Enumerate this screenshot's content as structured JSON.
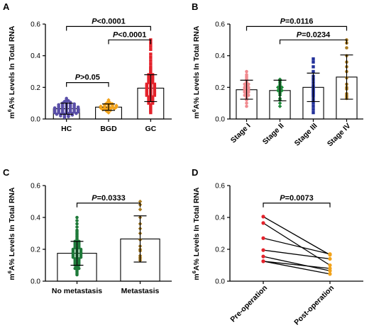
{
  "chart_data": [
    {
      "type": "scatter",
      "panel": "A",
      "ylabel_pre": "m",
      "ylabel_sup": "6",
      "ylabel_post": "A% Levels In Total RNA",
      "ylim": [
        0,
        0.6
      ],
      "yticks": [
        "0.0",
        "0.2",
        "0.4",
        "0.6"
      ],
      "categories": [
        "HC",
        "BGD",
        "GC"
      ],
      "colors": [
        "#5a4fa8",
        "#f2a31b",
        "#e4222b"
      ],
      "series": [
        {
          "category": "HC",
          "mean": 0.065,
          "sd": 0.035,
          "values": [
            0.01,
            0.015,
            0.02,
            0.02,
            0.025,
            0.025,
            0.03,
            0.03,
            0.03,
            0.035,
            0.035,
            0.035,
            0.04,
            0.04,
            0.04,
            0.04,
            0.045,
            0.045,
            0.045,
            0.05,
            0.05,
            0.05,
            0.05,
            0.055,
            0.055,
            0.055,
            0.06,
            0.06,
            0.06,
            0.06,
            0.065,
            0.065,
            0.065,
            0.07,
            0.07,
            0.07,
            0.07,
            0.075,
            0.075,
            0.075,
            0.08,
            0.08,
            0.08,
            0.085,
            0.085,
            0.09,
            0.09,
            0.09,
            0.095,
            0.095,
            0.1,
            0.1,
            0.105,
            0.11,
            0.115,
            0.12,
            0.13
          ]
        },
        {
          "category": "BGD",
          "mean": 0.075,
          "sd": 0.02,
          "values": [
            0.04,
            0.05,
            0.055,
            0.06,
            0.06,
            0.065,
            0.065,
            0.07,
            0.07,
            0.07,
            0.075,
            0.075,
            0.08,
            0.08,
            0.08,
            0.085,
            0.085,
            0.09,
            0.09,
            0.095,
            0.1,
            0.1,
            0.11,
            0.12
          ]
        },
        {
          "category": "GC",
          "mean": 0.195,
          "sd": 0.085,
          "values": [
            0.04,
            0.05,
            0.06,
            0.07,
            0.08,
            0.09,
            0.1,
            0.1,
            0.11,
            0.11,
            0.12,
            0.12,
            0.13,
            0.13,
            0.14,
            0.14,
            0.15,
            0.15,
            0.15,
            0.16,
            0.16,
            0.16,
            0.17,
            0.17,
            0.17,
            0.18,
            0.18,
            0.18,
            0.19,
            0.19,
            0.19,
            0.2,
            0.2,
            0.2,
            0.21,
            0.21,
            0.21,
            0.22,
            0.22,
            0.22,
            0.23,
            0.23,
            0.24,
            0.24,
            0.25,
            0.25,
            0.26,
            0.26,
            0.27,
            0.27,
            0.28,
            0.28,
            0.29,
            0.3,
            0.31,
            0.32,
            0.33,
            0.35,
            0.37,
            0.39,
            0.41,
            0.44,
            0.46,
            0.48,
            0.5
          ]
        }
      ],
      "comparisons": [
        {
          "from": 0,
          "to": 2,
          "label": "P<0.0001",
          "y": 0.585
        },
        {
          "from": 1,
          "to": 2,
          "label": "P<0.0001",
          "y": 0.5
        },
        {
          "from": 0,
          "to": 1,
          "label": "P>0.05",
          "y": 0.23
        }
      ]
    },
    {
      "type": "scatter",
      "panel": "B",
      "ylabel_pre": "m",
      "ylabel_sup": "6",
      "ylabel_post": "A% Levels In Total RNA",
      "ylim": [
        0,
        0.6
      ],
      "yticks": [
        "0.0",
        "0.2",
        "0.4",
        "0.6"
      ],
      "categories": [
        "Stage I",
        "Stage II",
        "Stage III",
        "Stage IV"
      ],
      "colors": [
        "#f08a8f",
        "#1f8a3a",
        "#23319a",
        "#a97a1f"
      ],
      "series": [
        {
          "category": "Stage I",
          "mean": 0.185,
          "sd": 0.06,
          "values": [
            0.08,
            0.1,
            0.12,
            0.13,
            0.14,
            0.15,
            0.15,
            0.16,
            0.17,
            0.17,
            0.18,
            0.18,
            0.19,
            0.19,
            0.2,
            0.2,
            0.21,
            0.22,
            0.22,
            0.23,
            0.24,
            0.25,
            0.26,
            0.27,
            0.28,
            0.3
          ]
        },
        {
          "category": "Stage II",
          "mean": 0.18,
          "sd": 0.065,
          "values": [
            0.08,
            0.1,
            0.12,
            0.13,
            0.15,
            0.16,
            0.17,
            0.18,
            0.18,
            0.19,
            0.2,
            0.2,
            0.21,
            0.22,
            0.23,
            0.24,
            0.25
          ]
        },
        {
          "category": "Stage III",
          "mean": 0.2,
          "sd": 0.09,
          "values": [
            0.04,
            0.06,
            0.08,
            0.1,
            0.12,
            0.14,
            0.15,
            0.16,
            0.17,
            0.18,
            0.19,
            0.2,
            0.21,
            0.23,
            0.25,
            0.27,
            0.3,
            0.33,
            0.36,
            0.38
          ]
        },
        {
          "category": "Stage IV",
          "mean": 0.265,
          "sd": 0.14,
          "values": [
            0.13,
            0.14,
            0.15,
            0.16,
            0.19,
            0.2,
            0.22,
            0.26,
            0.3,
            0.33,
            0.36,
            0.4,
            0.45,
            0.48,
            0.5
          ]
        }
      ],
      "comparisons": [
        {
          "from": 0,
          "to": 3,
          "label": "P=0.0116",
          "y": 0.585
        },
        {
          "from": 1,
          "to": 3,
          "label": "P=0.0234",
          "y": 0.5
        }
      ]
    },
    {
      "type": "scatter",
      "panel": "C",
      "ylabel_pre": "m",
      "ylabel_sup": "6",
      "ylabel_post": "A% Levels In Total RNA",
      "ylim": [
        0,
        0.6
      ],
      "yticks": [
        "0.0",
        "0.2",
        "0.4",
        "0.6"
      ],
      "categories": [
        "No metastasis",
        "Metastasis"
      ],
      "colors": [
        "#1f7a3a",
        "#a97a1f"
      ],
      "series": [
        {
          "category": "No metastasis",
          "mean": 0.175,
          "sd": 0.075,
          "values": [
            0.04,
            0.05,
            0.06,
            0.07,
            0.08,
            0.08,
            0.09,
            0.1,
            0.1,
            0.11,
            0.11,
            0.12,
            0.12,
            0.13,
            0.13,
            0.14,
            0.14,
            0.15,
            0.15,
            0.15,
            0.16,
            0.16,
            0.16,
            0.17,
            0.17,
            0.17,
            0.18,
            0.18,
            0.18,
            0.19,
            0.19,
            0.19,
            0.2,
            0.2,
            0.2,
            0.21,
            0.21,
            0.22,
            0.22,
            0.23,
            0.23,
            0.24,
            0.24,
            0.25,
            0.25,
            0.26,
            0.27,
            0.28,
            0.29,
            0.3,
            0.31,
            0.32,
            0.34,
            0.36,
            0.38,
            0.4
          ]
        },
        {
          "category": "Metastasis",
          "mean": 0.265,
          "sd": 0.145,
          "values": [
            0.13,
            0.14,
            0.15,
            0.16,
            0.19,
            0.2,
            0.22,
            0.26,
            0.3,
            0.33,
            0.36,
            0.4,
            0.45,
            0.48,
            0.5
          ]
        }
      ],
      "comparisons": [
        {
          "from": 0,
          "to": 1,
          "label": "P=0.0333",
          "y": 0.49
        }
      ]
    },
    {
      "type": "line",
      "panel": "D",
      "ylabel_pre": "m",
      "ylabel_sup": "6",
      "ylabel_post": "A% Levels In Total RNA",
      "ylim": [
        0,
        0.6
      ],
      "yticks": [
        "0.0",
        "0.2",
        "0.4",
        "0.6"
      ],
      "categories": [
        "Pre-operation",
        "Post-operation"
      ],
      "colors": [
        "#e4222b",
        "#f2a31b"
      ],
      "pairs": [
        [
          0.405,
          0.165
        ],
        [
          0.365,
          0.1
        ],
        [
          0.27,
          0.17
        ],
        [
          0.195,
          0.14
        ],
        [
          0.155,
          0.065
        ],
        [
          0.125,
          0.08
        ],
        [
          0.125,
          0.045
        ]
      ],
      "comparisons": [
        {
          "from": 0,
          "to": 1,
          "label": "P=0.0073",
          "y": 0.49
        }
      ]
    }
  ]
}
